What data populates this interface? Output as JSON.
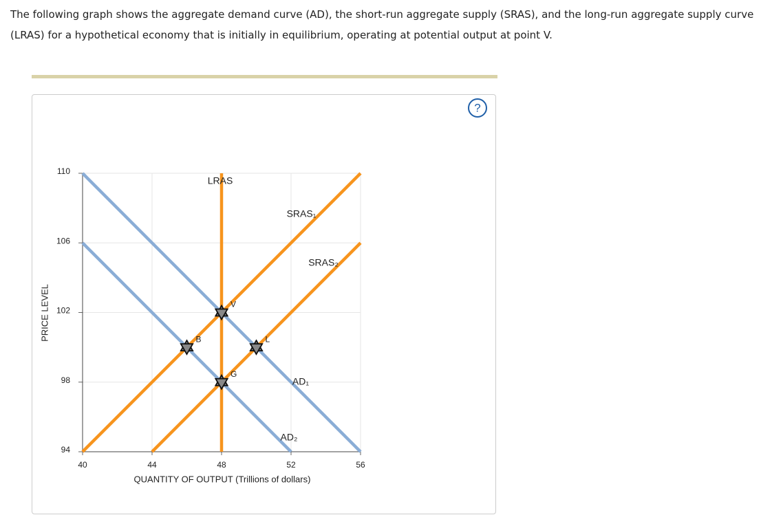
{
  "intro": "The following graph shows the aggregate demand curve (AD), the short-run aggregate supply (SRAS), and the long-run aggregate supply curve (LRAS) for a hypothetical economy that is initially in equilibrium, operating at potential output at point V.",
  "help_icon": "?",
  "chart_data": {
    "type": "line",
    "xlabel": "QUANTITY OF OUTPUT (Trillions of dollars)",
    "ylabel": "PRICE LEVEL",
    "xlim": [
      40,
      56
    ],
    "ylim": [
      94,
      110
    ],
    "xticks": [
      40,
      44,
      48,
      52,
      56
    ],
    "yticks": [
      94,
      98,
      102,
      106,
      110
    ],
    "grid": true,
    "series": [
      {
        "name": "AD₁",
        "color": "#8aadd6",
        "x": [
          40,
          56
        ],
        "values": [
          110,
          94
        ]
      },
      {
        "name": "AD₂",
        "color": "#8aadd6",
        "x": [
          40,
          52
        ],
        "values": [
          106,
          94
        ]
      },
      {
        "name": "SRAS₁",
        "color": "#f7941d",
        "x": [
          40,
          56
        ],
        "values": [
          94,
          110
        ]
      },
      {
        "name": "SRAS₂",
        "color": "#f7941d",
        "x": [
          44,
          56
        ],
        "values": [
          94,
          106
        ]
      },
      {
        "name": "LRAS",
        "color": "#f7941d",
        "x": [
          48,
          48
        ],
        "values": [
          94,
          110
        ]
      }
    ],
    "points": [
      {
        "label": "V",
        "x": 48,
        "y": 102
      },
      {
        "label": "B",
        "x": 46,
        "y": 100
      },
      {
        "label": "G",
        "x": 48,
        "y": 98
      },
      {
        "label": "L",
        "x": 50,
        "y": 100
      }
    ]
  }
}
